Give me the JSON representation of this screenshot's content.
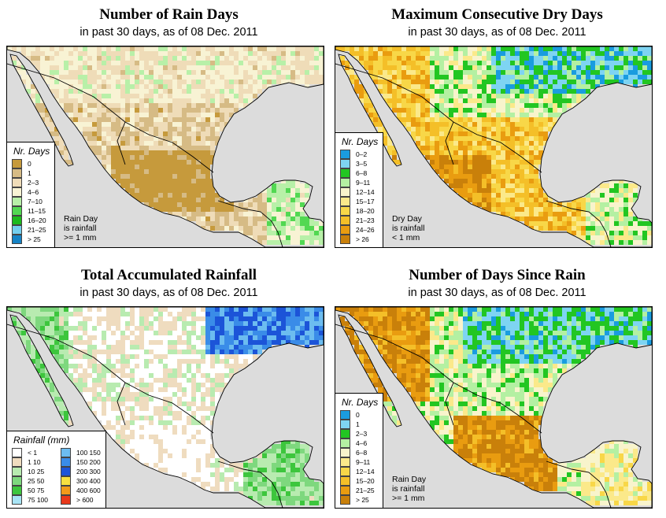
{
  "panels": [
    {
      "title": "Number of Rain Days",
      "subtitle": "in past 30 days, as of  08 Dec. 2011",
      "legend": {
        "title": "Nr. Days",
        "items": [
          {
            "label": "0",
            "color": "#c69a3c"
          },
          {
            "label": "1",
            "color": "#d6bb85"
          },
          {
            "label": "2–3",
            "color": "#efdcb8"
          },
          {
            "label": "4–6",
            "color": "#f8f3d4"
          },
          {
            "label": "7–10",
            "color": "#b8f0a8"
          },
          {
            "label": "11–15",
            "color": "#52d852"
          },
          {
            "label": "16–20",
            "color": "#1cba1c"
          },
          {
            "label": "21–25",
            "color": "#73cfee"
          },
          {
            "label": "> 25",
            "color": "#1583c5"
          }
        ]
      },
      "note": [
        "Rain Day",
        "is rainfall",
        ">= 1 mm"
      ]
    },
    {
      "title": "Maximum Consecutive Dry Days",
      "subtitle": "in past 30 days, as of  08 Dec. 2011",
      "legend": {
        "title": "Nr. Days",
        "items": [
          {
            "label": "0–2",
            "color": "#1a9cdf"
          },
          {
            "label": "3–5",
            "color": "#7ed4f2"
          },
          {
            "label": "6–8",
            "color": "#22c622"
          },
          {
            "label": "9–11",
            "color": "#b4f0a2"
          },
          {
            "label": "12–14",
            "color": "#f8f4cc"
          },
          {
            "label": "15–17",
            "color": "#fbe98a"
          },
          {
            "label": "18–20",
            "color": "#f8d748"
          },
          {
            "label": "21–23",
            "color": "#f4bf28"
          },
          {
            "label": "24–26",
            "color": "#e99c10"
          },
          {
            "label": "> 26",
            "color": "#c9800a"
          }
        ]
      },
      "note": [
        "Dry Day",
        "is rainfall",
        "< 1 mm"
      ]
    },
    {
      "title": "Total Accumulated Rainfall",
      "subtitle": "in past 30 days, as of  08 Dec. 2011",
      "legend": {
        "title": "Rainfall (mm)",
        "items": [
          {
            "label": "< 1",
            "color": "#ffffff"
          },
          {
            "label": "1    10",
            "color": "#efdcbf"
          },
          {
            "label": "10    25",
            "color": "#b8ebb0"
          },
          {
            "label": "25    50",
            "color": "#7ed87e"
          },
          {
            "label": "50    75",
            "color": "#3dc63d"
          },
          {
            "label": "75    100",
            "color": "#a8e4f5"
          },
          {
            "label": "100    150",
            "color": "#6cbcf0"
          },
          {
            "label": "150    200",
            "color": "#3a8ce8"
          },
          {
            "label": "200    300",
            "color": "#1c54d8"
          },
          {
            "label": "300    400",
            "color": "#f8e040"
          },
          {
            "label": "400    600",
            "color": "#f29a1a"
          },
          {
            "label": "> 600",
            "color": "#e8381a"
          }
        ]
      },
      "note": []
    },
    {
      "title": "Number of Days Since Rain",
      "subtitle": "in past 30 days, as of  08 Dec. 2011",
      "legend": {
        "title": "Nr. Days",
        "items": [
          {
            "label": "0",
            "color": "#1a9cdf"
          },
          {
            "label": "1",
            "color": "#7ed4f2"
          },
          {
            "label": "2–3",
            "color": "#22c622"
          },
          {
            "label": "4–6",
            "color": "#b4f0a2"
          },
          {
            "label": "6–8",
            "color": "#f8f4cc"
          },
          {
            "label": "9–11",
            "color": "#fbe98a"
          },
          {
            "label": "12–14",
            "color": "#f8d748"
          },
          {
            "label": "15–20",
            "color": "#f4bf28"
          },
          {
            "label": "21–25",
            "color": "#e99c10"
          },
          {
            "label": "> 25",
            "color": "#c9800a"
          }
        ]
      },
      "note": [
        "Rain Day",
        "is rainfall",
        ">= 1 mm"
      ]
    }
  ]
}
